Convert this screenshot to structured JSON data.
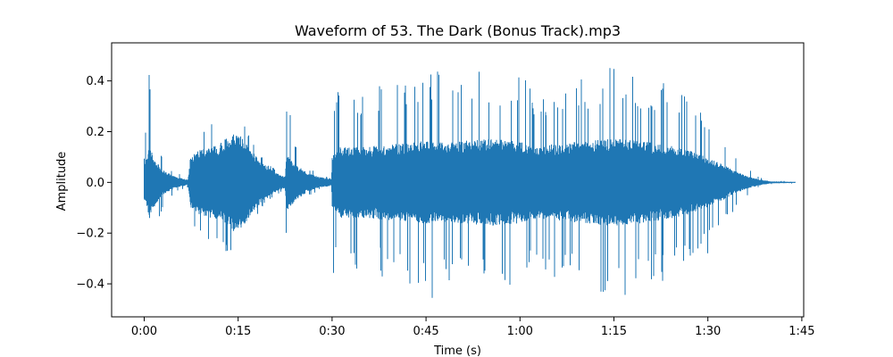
{
  "chart_data": {
    "type": "line",
    "title": "Waveform of 53. The Dark (Bonus Track).mp3",
    "xlabel": "Time (s)",
    "ylabel": "Amplitude",
    "xlim": [
      -5.2,
      105.3
    ],
    "ylim": [
      -0.53,
      0.55
    ],
    "x_ticks": [
      {
        "value": 0,
        "label": "0:00"
      },
      {
        "value": 15,
        "label": "0:15"
      },
      {
        "value": 30,
        "label": "0:30"
      },
      {
        "value": 45,
        "label": "0:45"
      },
      {
        "value": 60,
        "label": "1:00"
      },
      {
        "value": 75,
        "label": "1:15"
      },
      {
        "value": 90,
        "label": "1:30"
      },
      {
        "value": 105,
        "label": "1:45"
      }
    ],
    "y_ticks": [
      {
        "value": 0.4,
        "label": "0.4"
      },
      {
        "value": 0.2,
        "label": "0.2"
      },
      {
        "value": 0.0,
        "label": "0.0"
      },
      {
        "value": -0.2,
        "label": "−0.2"
      },
      {
        "value": -0.4,
        "label": "−0.4"
      }
    ],
    "series": [
      {
        "name": "waveform",
        "color": "#1f77b4",
        "duration_s": 104,
        "envelope": {
          "t": [
            0,
            0.3,
            0.8,
            1.0,
            1.8,
            3.0,
            5.0,
            7.0,
            7.4,
            7.6,
            9.0,
            12.0,
            14.0,
            15.5,
            17.0,
            19.0,
            21.0,
            22.5,
            22.7,
            23.0,
            24.0,
            26.0,
            28.0,
            29.9,
            30.0,
            30.1,
            31.0,
            35.0,
            40.0,
            44.0,
            45.0,
            50.0,
            55.0,
            60.0,
            63.0,
            65.0,
            70.0,
            75.0,
            80.0,
            85.0,
            88.0,
            90.0,
            92.0,
            94.0,
            96.0,
            98.0,
            100.0,
            104.0
          ],
          "core": [
            0.07,
            0.08,
            0.14,
            0.12,
            0.08,
            0.045,
            0.02,
            0.01,
            0.1,
            0.1,
            0.12,
            0.14,
            0.18,
            0.17,
            0.12,
            0.07,
            0.035,
            0.02,
            0.1,
            0.1,
            0.07,
            0.035,
            0.02,
            0.012,
            0.1,
            0.1,
            0.13,
            0.13,
            0.14,
            0.15,
            0.15,
            0.15,
            0.16,
            0.15,
            0.13,
            0.14,
            0.15,
            0.16,
            0.15,
            0.13,
            0.11,
            0.09,
            0.07,
            0.045,
            0.025,
            0.012,
            0.004,
            0.002
          ],
          "peak": [
            0.1,
            0.3,
            0.44,
            0.37,
            0.22,
            0.09,
            0.04,
            0.02,
            0.21,
            0.18,
            0.22,
            0.26,
            0.36,
            0.3,
            0.2,
            0.09,
            0.05,
            0.03,
            0.3,
            0.33,
            0.15,
            0.06,
            0.03,
            0.018,
            0.36,
            0.36,
            0.36,
            0.38,
            0.38,
            0.42,
            0.5,
            0.42,
            0.45,
            0.42,
            0.36,
            0.37,
            0.42,
            0.46,
            0.42,
            0.38,
            0.3,
            0.28,
            0.2,
            0.12,
            0.06,
            0.025,
            0.008,
            0.004
          ]
        }
      }
    ]
  }
}
